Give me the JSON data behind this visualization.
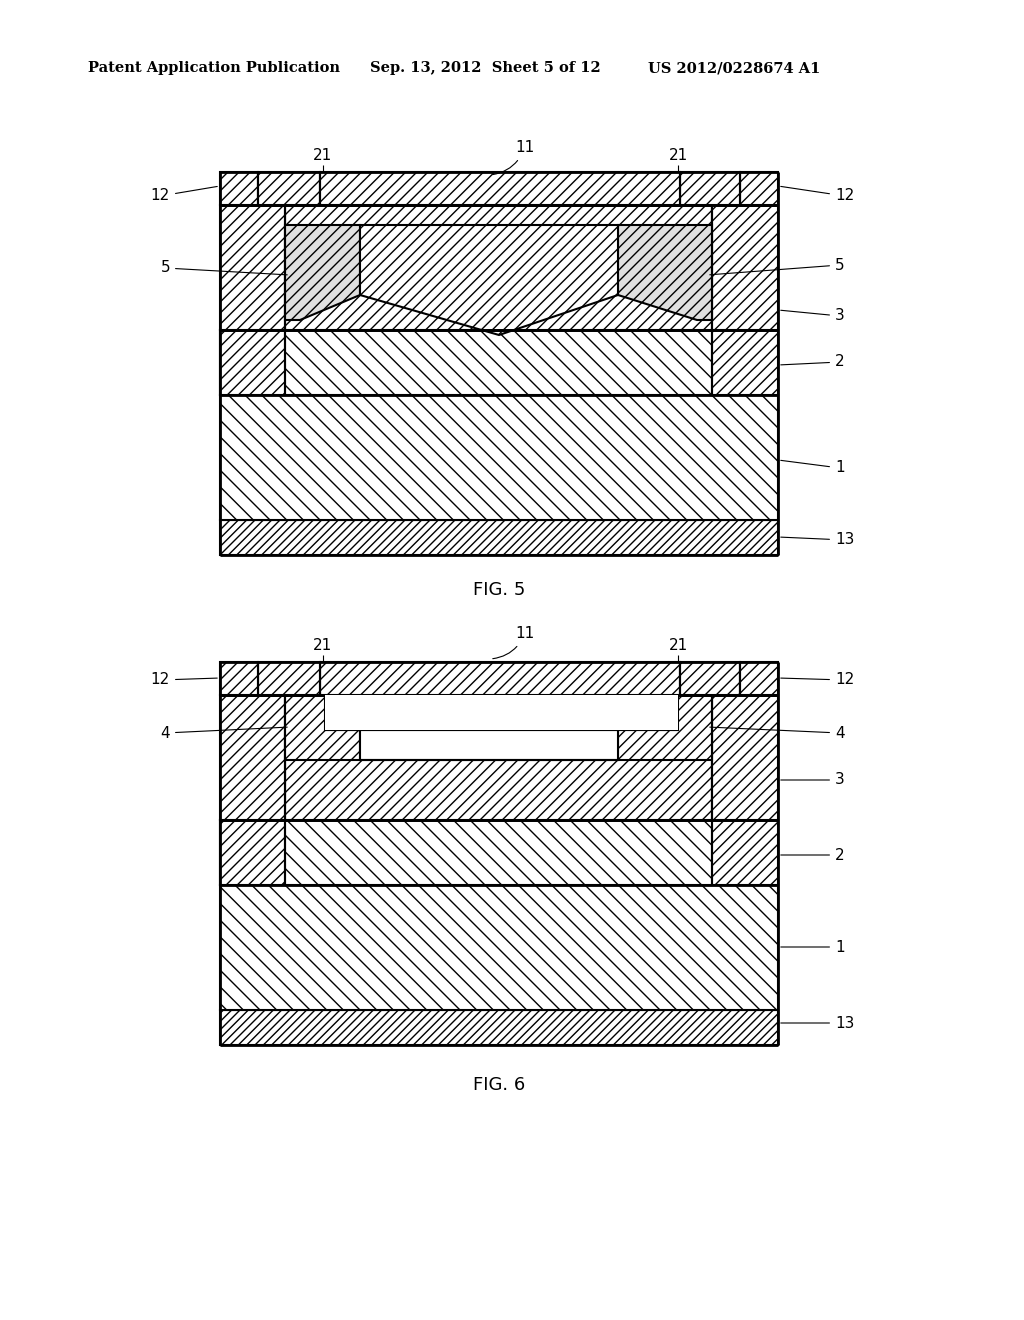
{
  "background_color": "#ffffff",
  "header_left": "Patent Application Publication",
  "header_mid": "Sep. 13, 2012  Sheet 5 of 12",
  "header_right": "US 2012/0228674 A1",
  "fig5_caption": "FIG. 5",
  "fig6_caption": "FIG. 6",
  "font_size_header": 10.5,
  "font_size_label": 11,
  "font_size_caption": 13
}
